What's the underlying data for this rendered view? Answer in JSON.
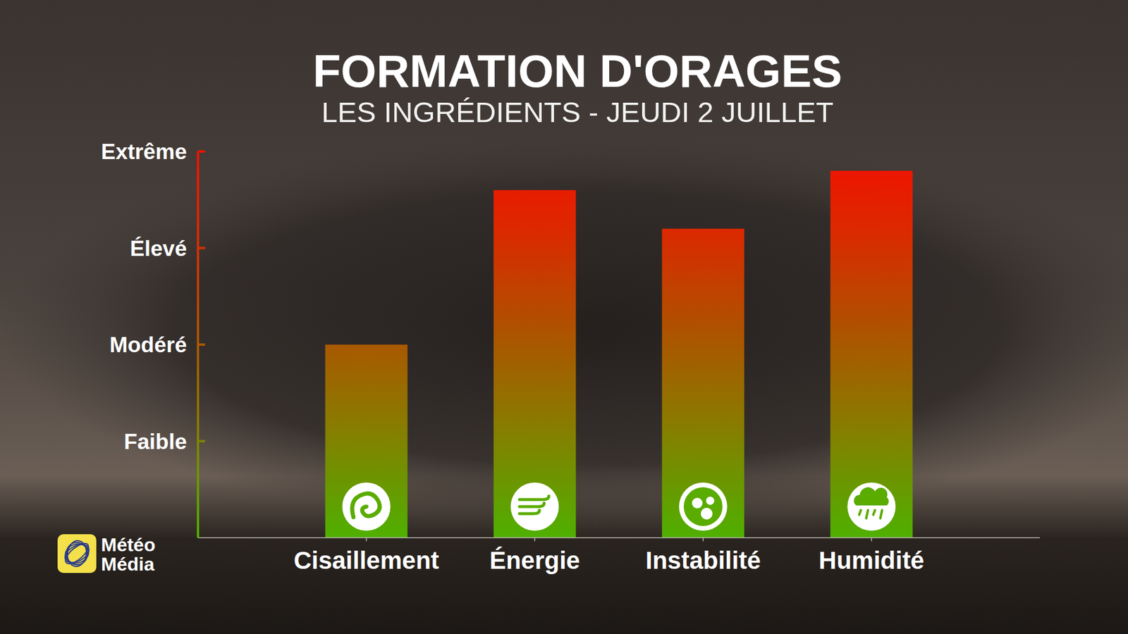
{
  "chart_data": {
    "type": "bar",
    "title": "FORMATION D'ORAGES",
    "subtitle": "LES INGRÉDIENTS - JEUDI 2 JUILLET",
    "categories": [
      "Cisaillement",
      "Énergie",
      "Instabilité",
      "Humidité"
    ],
    "values": [
      2.0,
      3.6,
      3.2,
      3.8
    ],
    "ylim": [
      0,
      4
    ],
    "yticks": [
      {
        "value": 1,
        "label": "Faible"
      },
      {
        "value": 2,
        "label": "Modéré"
      },
      {
        "value": 3,
        "label": "Élevé"
      },
      {
        "value": 4,
        "label": "Extrême"
      }
    ],
    "annotations": [
      "Météo Média"
    ],
    "grid": false
  }
}
